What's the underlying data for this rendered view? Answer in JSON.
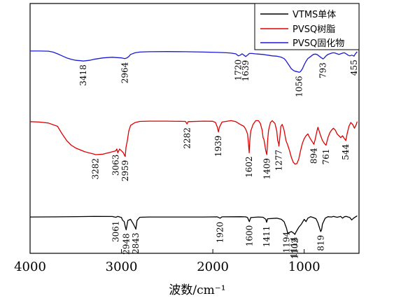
{
  "chart_data": {
    "type": "line",
    "xlabel": "波数/cm⁻¹",
    "ylabel": "",
    "x_reversed": true,
    "xlim": [
      4000,
      400
    ],
    "ylim": [
      0,
      100
    ],
    "xticks": [
      4000,
      3000,
      2000,
      1000
    ],
    "yticks_shown": false,
    "grid": false,
    "legend_position": "top-right",
    "series": [
      {
        "name": "VTMS单体",
        "color": "#000000",
        "points": [
          [
            4000,
            30
          ],
          [
            3700,
            30.2
          ],
          [
            3500,
            30.6
          ],
          [
            3300,
            31
          ],
          [
            3100,
            30.8
          ],
          [
            3061,
            29.5
          ],
          [
            3040,
            31
          ],
          [
            3000,
            29
          ],
          [
            2990,
            25
          ],
          [
            2970,
            22
          ],
          [
            2959,
            14
          ],
          [
            2948,
            8
          ],
          [
            2930,
            24
          ],
          [
            2900,
            26
          ],
          [
            2870,
            18
          ],
          [
            2850,
            12
          ],
          [
            2843,
            9
          ],
          [
            2830,
            24
          ],
          [
            2800,
            29.5
          ],
          [
            2700,
            30
          ],
          [
            2500,
            30
          ],
          [
            2300,
            30
          ],
          [
            2100,
            30
          ],
          [
            1950,
            30.3
          ],
          [
            1920,
            28
          ],
          [
            1900,
            30.2
          ],
          [
            1700,
            30.5
          ],
          [
            1640,
            30.2
          ],
          [
            1620,
            29
          ],
          [
            1600,
            22
          ],
          [
            1585,
            29
          ],
          [
            1500,
            30
          ],
          [
            1450,
            29.5
          ],
          [
            1420,
            26
          ],
          [
            1411,
            21
          ],
          [
            1400,
            27
          ],
          [
            1300,
            28
          ],
          [
            1250,
            26
          ],
          [
            1220,
            22
          ],
          [
            1194,
            11
          ],
          [
            1180,
            2
          ],
          [
            1140,
            5
          ],
          [
            1114,
            2
          ],
          [
            1102,
            0
          ],
          [
            1090,
            4
          ],
          [
            1060,
            12
          ],
          [
            1030,
            18
          ],
          [
            1000,
            26
          ],
          [
            980,
            22
          ],
          [
            960,
            28
          ],
          [
            930,
            30.5
          ],
          [
            900,
            29
          ],
          [
            870,
            27
          ],
          [
            850,
            20
          ],
          [
            830,
            10
          ],
          [
            819,
            5
          ],
          [
            810,
            8
          ],
          [
            800,
            18
          ],
          [
            770,
            28
          ],
          [
            740,
            30.5
          ],
          [
            700,
            30
          ],
          [
            680,
            31
          ],
          [
            640,
            29.5
          ],
          [
            600,
            31
          ],
          [
            580,
            28
          ],
          [
            560,
            30.5
          ],
          [
            540,
            31
          ],
          [
            500,
            29
          ],
          [
            480,
            25
          ],
          [
            460,
            28
          ],
          [
            440,
            30
          ],
          [
            420,
            32
          ]
        ]
      },
      {
        "name": "PVSQ树脂",
        "color": "#e00000",
        "points": [
          [
            4000,
            75
          ],
          [
            3900,
            74.5
          ],
          [
            3800,
            73.5
          ],
          [
            3700,
            70
          ],
          [
            3650,
            62
          ],
          [
            3600,
            55
          ],
          [
            3550,
            50
          ],
          [
            3500,
            47
          ],
          [
            3400,
            43
          ],
          [
            3300,
            40.5
          ],
          [
            3282,
            40
          ],
          [
            3200,
            40.5
          ],
          [
            3100,
            43
          ],
          [
            3063,
            44
          ],
          [
            3050,
            46
          ],
          [
            3040,
            42
          ],
          [
            3020,
            46
          ],
          [
            3000,
            44
          ],
          [
            2980,
            42
          ],
          [
            2959,
            38
          ],
          [
            2950,
            48
          ],
          [
            2935,
            55
          ],
          [
            2920,
            65
          ],
          [
            2900,
            71
          ],
          [
            2850,
            74
          ],
          [
            2800,
            75.2
          ],
          [
            2700,
            75.5
          ],
          [
            2500,
            75.5
          ],
          [
            2300,
            75.2
          ],
          [
            2282,
            72.5
          ],
          [
            2270,
            75
          ],
          [
            2100,
            75.5
          ],
          [
            2000,
            75.3
          ],
          [
            1970,
            74
          ],
          [
            1950,
            69
          ],
          [
            1939,
            64
          ],
          [
            1928,
            69
          ],
          [
            1900,
            74.5
          ],
          [
            1800,
            76
          ],
          [
            1750,
            75
          ],
          [
            1700,
            72
          ],
          [
            1660,
            70
          ],
          [
            1640,
            67
          ],
          [
            1620,
            62
          ],
          [
            1610,
            52
          ],
          [
            1602,
            42
          ],
          [
            1595,
            55
          ],
          [
            1585,
            65
          ],
          [
            1560,
            72
          ],
          [
            1530,
            76
          ],
          [
            1500,
            76
          ],
          [
            1480,
            73
          ],
          [
            1460,
            66
          ],
          [
            1450,
            58
          ],
          [
            1440,
            56
          ],
          [
            1430,
            50
          ],
          [
            1420,
            44
          ],
          [
            1409,
            40
          ],
          [
            1400,
            55
          ],
          [
            1390,
            66
          ],
          [
            1370,
            74
          ],
          [
            1350,
            76
          ],
          [
            1320,
            73
          ],
          [
            1300,
            65
          ],
          [
            1290,
            55
          ],
          [
            1280,
            52
          ],
          [
            1277,
            49
          ],
          [
            1270,
            55
          ],
          [
            1255,
            70
          ],
          [
            1240,
            72
          ],
          [
            1220,
            66
          ],
          [
            1200,
            55
          ],
          [
            1180,
            50
          ],
          [
            1160,
            44
          ],
          [
            1140,
            37
          ],
          [
            1120,
            32
          ],
          [
            1100,
            30
          ],
          [
            1080,
            30.5
          ],
          [
            1060,
            35
          ],
          [
            1040,
            44
          ],
          [
            1020,
            52
          ],
          [
            1000,
            57
          ],
          [
            980,
            60
          ],
          [
            960,
            62
          ],
          [
            940,
            58
          ],
          [
            920,
            55
          ],
          [
            900,
            52
          ],
          [
            894,
            51
          ],
          [
            880,
            56
          ],
          [
            860,
            65
          ],
          [
            850,
            69
          ],
          [
            840,
            66
          ],
          [
            820,
            60
          ],
          [
            800,
            55
          ],
          [
            780,
            52
          ],
          [
            761,
            50
          ],
          [
            740,
            58
          ],
          [
            720,
            63
          ],
          [
            700,
            66
          ],
          [
            680,
            68
          ],
          [
            660,
            66
          ],
          [
            640,
            62
          ],
          [
            620,
            60
          ],
          [
            600,
            58
          ],
          [
            580,
            60
          ],
          [
            560,
            57
          ],
          [
            544,
            55
          ],
          [
            530,
            62
          ],
          [
            510,
            70
          ],
          [
            490,
            74
          ],
          [
            470,
            72
          ],
          [
            450,
            68
          ],
          [
            430,
            72
          ],
          [
            420,
            75
          ]
        ]
      },
      {
        "name": "PVSQ固化物",
        "color": "#1a1ad6",
        "points": [
          [
            4000,
            97
          ],
          [
            3900,
            97
          ],
          [
            3800,
            96.8
          ],
          [
            3750,
            95.5
          ],
          [
            3700,
            93
          ],
          [
            3650,
            90
          ],
          [
            3600,
            87
          ],
          [
            3550,
            85
          ],
          [
            3500,
            83.5
          ],
          [
            3450,
            83
          ],
          [
            3418,
            82.5
          ],
          [
            3350,
            83.5
          ],
          [
            3300,
            85
          ],
          [
            3200,
            87
          ],
          [
            3100,
            88
          ],
          [
            3050,
            87.5
          ],
          [
            3000,
            87
          ],
          [
            2964,
            86
          ],
          [
            2940,
            87
          ],
          [
            2920,
            89
          ],
          [
            2900,
            92
          ],
          [
            2850,
            94.5
          ],
          [
            2800,
            95.5
          ],
          [
            2700,
            96
          ],
          [
            2500,
            96.2
          ],
          [
            2300,
            96
          ],
          [
            2100,
            95.5
          ],
          [
            1950,
            95
          ],
          [
            1850,
            94.5
          ],
          [
            1800,
            94
          ],
          [
            1750,
            93
          ],
          [
            1720,
            90
          ],
          [
            1700,
            91
          ],
          [
            1680,
            93
          ],
          [
            1660,
            91
          ],
          [
            1639,
            89
          ],
          [
            1620,
            91
          ],
          [
            1600,
            93.5
          ],
          [
            1570,
            93.5
          ],
          [
            1540,
            93
          ],
          [
            1500,
            92.5
          ],
          [
            1450,
            92
          ],
          [
            1400,
            91
          ],
          [
            1350,
            90
          ],
          [
            1300,
            89.5
          ],
          [
            1250,
            88
          ],
          [
            1220,
            86
          ],
          [
            1200,
            83
          ],
          [
            1180,
            79
          ],
          [
            1160,
            75
          ],
          [
            1140,
            71
          ],
          [
            1120,
            69
          ],
          [
            1100,
            67.5
          ],
          [
            1080,
            67
          ],
          [
            1056,
            66
          ],
          [
            1040,
            67
          ],
          [
            1020,
            71
          ],
          [
            1000,
            77
          ],
          [
            980,
            82
          ],
          [
            960,
            86
          ],
          [
            940,
            88
          ],
          [
            920,
            90
          ],
          [
            900,
            92
          ],
          [
            880,
            92.5
          ],
          [
            860,
            92
          ],
          [
            840,
            90
          ],
          [
            820,
            88
          ],
          [
            800,
            86
          ],
          [
            793,
            85.5
          ],
          [
            780,
            87
          ],
          [
            760,
            90
          ],
          [
            740,
            92
          ],
          [
            720,
            93
          ],
          [
            700,
            94
          ],
          [
            680,
            94.5
          ],
          [
            660,
            94
          ],
          [
            640,
            93
          ],
          [
            620,
            92
          ],
          [
            600,
            93
          ],
          [
            580,
            94
          ],
          [
            560,
            94.5
          ],
          [
            540,
            93
          ],
          [
            520,
            91
          ],
          [
            500,
            90
          ],
          [
            480,
            91
          ],
          [
            460,
            90
          ],
          [
            455,
            89.5
          ],
          [
            440,
            93
          ],
          [
            420,
            96
          ]
        ]
      }
    ],
    "annotations": [
      {
        "text": "3418",
        "x": 3418
      },
      {
        "text": "2964",
        "x": 2964
      },
      {
        "text": "1720",
        "x": 1720
      },
      {
        "text": "1639",
        "x": 1639
      },
      {
        "text": "1056",
        "x": 1056
      },
      {
        "text": "793",
        "x": 793
      },
      {
        "text": "455",
        "x": 455
      },
      {
        "text": "3282",
        "x": 3282
      },
      {
        "text": "3063",
        "x": 3063
      },
      {
        "text": "2959",
        "x": 2959
      },
      {
        "text": "2282",
        "x": 2282
      },
      {
        "text": "1939",
        "x": 1939
      },
      {
        "text": "1602",
        "x": 1602
      },
      {
        "text": "1409",
        "x": 1409
      },
      {
        "text": "1277",
        "x": 1277
      },
      {
        "text": "894",
        "x": 894
      },
      {
        "text": "761",
        "x": 761
      },
      {
        "text": "544",
        "x": 544
      },
      {
        "text": "3061",
        "x": 3061
      },
      {
        "text": "2948",
        "x": 2948
      },
      {
        "text": "2843",
        "x": 2843
      },
      {
        "text": "1920",
        "x": 1920
      },
      {
        "text": "1600",
        "x": 1600
      },
      {
        "text": "1411",
        "x": 1411
      },
      {
        "text": "1194",
        "x": 1194
      },
      {
        "text": "1114",
        "x": 1114
      },
      {
        "text": "1102",
        "x": 1102
      },
      {
        "text": "819",
        "x": 819
      }
    ]
  }
}
